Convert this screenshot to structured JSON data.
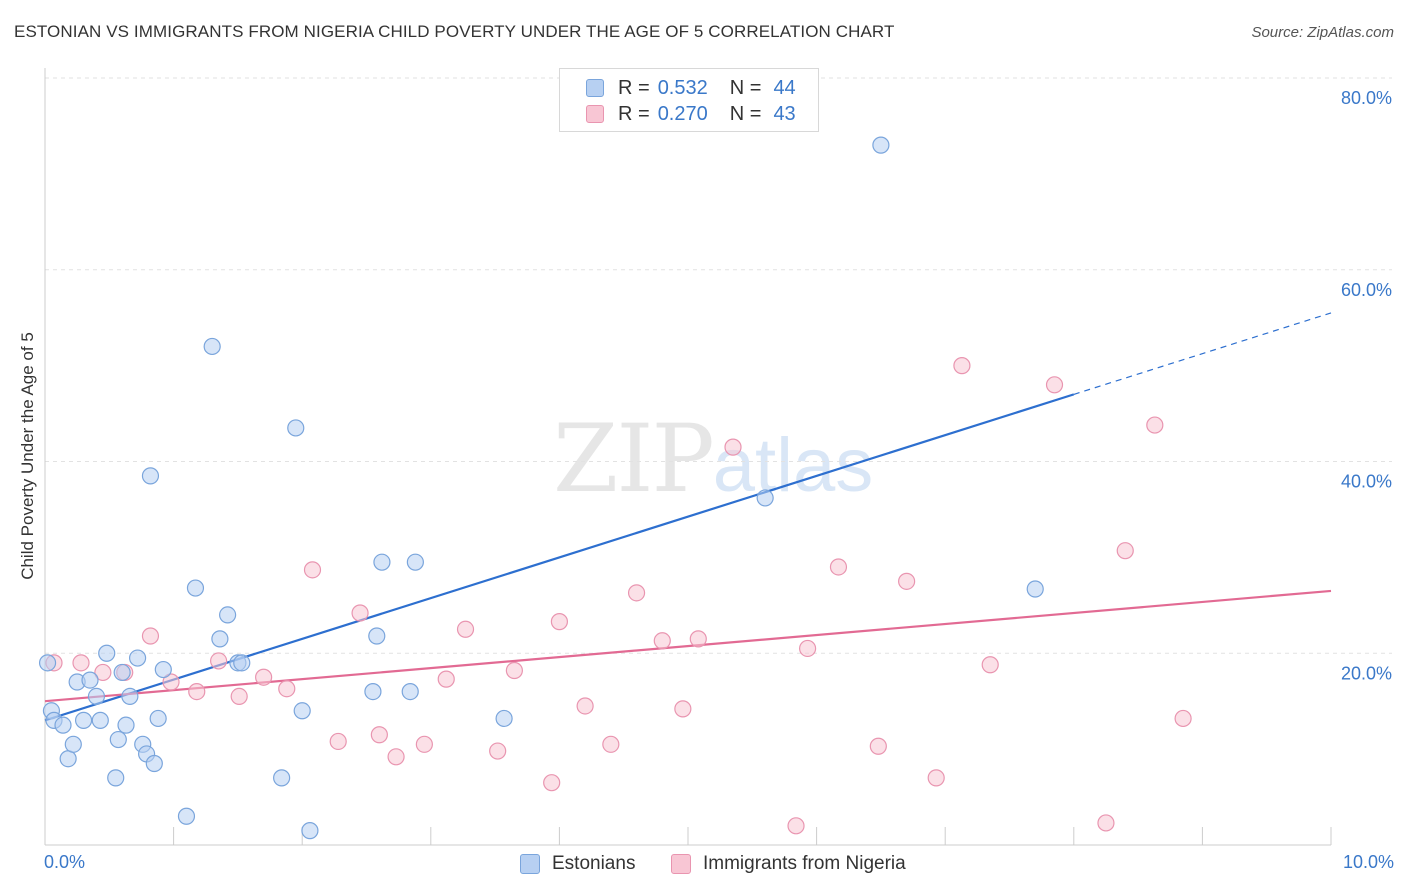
{
  "title": "ESTONIAN VS IMMIGRANTS FROM NIGERIA CHILD POVERTY UNDER THE AGE OF 5 CORRELATION CHART",
  "source": "Source: ZipAtlas.com",
  "watermark": {
    "zip": "ZIP",
    "atlas": "atlas"
  },
  "legend": {
    "rows": [
      {
        "r_label": "R =",
        "r_value": "0.532",
        "n_label": "N =",
        "n_value": "44"
      },
      {
        "r_label": "R =",
        "r_value": "0.270",
        "n_label": "N =",
        "n_value": "43"
      }
    ]
  },
  "bottom_legend": {
    "estonians": "Estonians",
    "nigeria": "Immigrants from Nigeria"
  },
  "colors": {
    "blue_fill": "#b7d0f2",
    "blue_stroke": "#7aa5dc",
    "blue_line": "#2d6fcf",
    "pink_fill": "#f8c6d4",
    "pink_stroke": "#e995b0",
    "pink_line": "#e26a93",
    "axis_label": "#3a78c9"
  },
  "chart_data": {
    "type": "scatter",
    "title": "ESTONIAN VS IMMIGRANTS FROM NIGERIA CHILD POVERTY UNDER THE AGE OF 5 CORRELATION CHART",
    "xlabel": "",
    "ylabel": "Child Poverty Under the Age of 5",
    "xlim": [
      0,
      10
    ],
    "ylim": [
      0,
      80
    ],
    "x_tick_labels": [
      "0.0%",
      "10.0%"
    ],
    "y_ticks": [
      20,
      40,
      60,
      80
    ],
    "y_tick_labels": [
      "20.0%",
      "40.0%",
      "60.0%",
      "80.0%"
    ],
    "grid": true,
    "series": [
      {
        "name": "Estonians",
        "trend": {
          "x0": 0.0,
          "y0": 13.0,
          "x1": 8.0,
          "y1": 47.0,
          "dashed_to_x": 10.0
        },
        "points": [
          [
            0.02,
            19
          ],
          [
            0.05,
            14
          ],
          [
            0.07,
            13
          ],
          [
            0.14,
            12.5
          ],
          [
            0.18,
            9
          ],
          [
            0.22,
            10.5
          ],
          [
            0.25,
            17
          ],
          [
            0.3,
            13
          ],
          [
            0.35,
            17.2
          ],
          [
            0.4,
            15.5
          ],
          [
            0.43,
            13
          ],
          [
            0.48,
            20
          ],
          [
            0.55,
            7
          ],
          [
            0.57,
            11
          ],
          [
            0.6,
            18
          ],
          [
            0.63,
            12.5
          ],
          [
            0.66,
            15.5
          ],
          [
            0.72,
            19.5
          ],
          [
            0.76,
            10.5
          ],
          [
            0.79,
            9.5
          ],
          [
            0.82,
            38.5
          ],
          [
            0.85,
            8.5
          ],
          [
            0.88,
            13.2
          ],
          [
            0.92,
            18.3
          ],
          [
            1.1,
            3
          ],
          [
            1.17,
            26.8
          ],
          [
            1.3,
            52
          ],
          [
            1.36,
            21.5
          ],
          [
            1.42,
            24
          ],
          [
            1.5,
            19
          ],
          [
            1.53,
            19
          ],
          [
            1.84,
            7
          ],
          [
            1.95,
            43.5
          ],
          [
            2.0,
            14
          ],
          [
            2.06,
            1.5
          ],
          [
            2.55,
            16
          ],
          [
            2.58,
            21.8
          ],
          [
            2.62,
            29.5
          ],
          [
            2.84,
            16
          ],
          [
            2.88,
            29.5
          ],
          [
            3.57,
            13.2
          ],
          [
            5.6,
            36.2
          ],
          [
            6.5,
            73
          ],
          [
            7.7,
            26.7
          ]
        ]
      },
      {
        "name": "Immigrants from Nigeria",
        "trend": {
          "x0": 0.0,
          "y0": 15.0,
          "x1": 10.0,
          "y1": 26.5
        },
        "points": [
          [
            0.07,
            19
          ],
          [
            0.28,
            19
          ],
          [
            0.45,
            18
          ],
          [
            0.62,
            18
          ],
          [
            0.82,
            21.8
          ],
          [
            0.98,
            17
          ],
          [
            1.18,
            16
          ],
          [
            1.35,
            19.2
          ],
          [
            1.51,
            15.5
          ],
          [
            1.7,
            17.5
          ],
          [
            1.88,
            16.3
          ],
          [
            2.08,
            28.7
          ],
          [
            2.28,
            10.8
          ],
          [
            2.45,
            24.2
          ],
          [
            2.6,
            11.5
          ],
          [
            2.73,
            9.2
          ],
          [
            2.95,
            10.5
          ],
          [
            3.12,
            17.3
          ],
          [
            3.27,
            22.5
          ],
          [
            3.52,
            9.8
          ],
          [
            3.65,
            18.2
          ],
          [
            3.94,
            6.5
          ],
          [
            4.0,
            23.3
          ],
          [
            4.2,
            14.5
          ],
          [
            4.4,
            10.5
          ],
          [
            4.6,
            26.3
          ],
          [
            4.8,
            21.3
          ],
          [
            4.96,
            14.2
          ],
          [
            5.08,
            21.5
          ],
          [
            5.35,
            41.5
          ],
          [
            5.84,
            2
          ],
          [
            5.93,
            20.5
          ],
          [
            6.17,
            29
          ],
          [
            6.48,
            10.3
          ],
          [
            6.7,
            27.5
          ],
          [
            6.93,
            7
          ],
          [
            7.13,
            50
          ],
          [
            7.35,
            18.8
          ],
          [
            7.85,
            48
          ],
          [
            8.25,
            2.3
          ],
          [
            8.4,
            30.7
          ],
          [
            8.63,
            43.8
          ],
          [
            8.85,
            13.2
          ]
        ]
      }
    ]
  }
}
